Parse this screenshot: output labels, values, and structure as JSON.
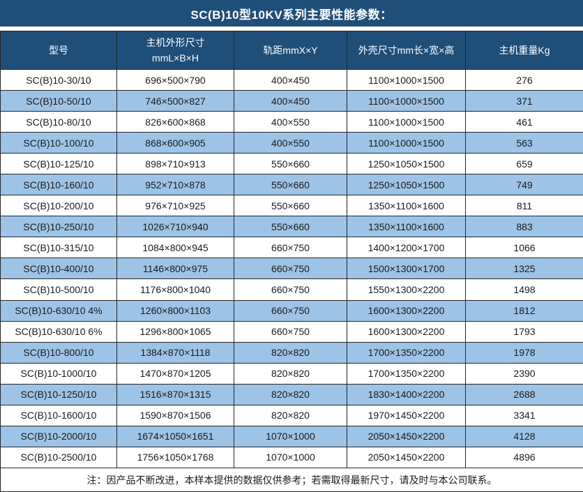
{
  "title": "SC(B)10型10KV系列主要性能参数：",
  "colors": {
    "header_navy": "#1f4e79",
    "row_alt_blue": "#9dc3e6",
    "border_dark": "#262626",
    "row_white": "#ffffff",
    "header_text": "#ffffff",
    "body_text": "#1a1a1a"
  },
  "table": {
    "header": {
      "col1": "型号",
      "col2_line1": "主机外形尺寸",
      "col2_line2": "mmL×B×H",
      "col3": "轨距mmX×Y",
      "col4": "外壳尺寸mm长×宽×高",
      "col5": "主机重量Kg"
    },
    "rows": [
      [
        "SC(B)10-30/10",
        "696×500×790",
        "400×450",
        "1100×1000×1500",
        "276"
      ],
      [
        "SC(B)10-50/10",
        "746×500×827",
        "400×450",
        "1100×1000×1500",
        "371"
      ],
      [
        "SC(B)10-80/10",
        "826×600×868",
        "400×550",
        "1100×1000×1500",
        "461"
      ],
      [
        "SC(B)10-100/10",
        "868×600×905",
        "400×550",
        "1100×1000×1500",
        "563"
      ],
      [
        "SC(B)10-125/10",
        "898×710×913",
        "550×660",
        "1250×1050×1500",
        "659"
      ],
      [
        "SC(B)10-160/10",
        "952×710×878",
        "550×660",
        "1250×1050×1500",
        "749"
      ],
      [
        "SC(B)10-200/10",
        "976×710×925",
        "550×660",
        "1350×1100×1600",
        "811"
      ],
      [
        "SC(B)10-250/10",
        "1026×710×940",
        "550×660",
        "1350×1100×1600",
        "883"
      ],
      [
        "SC(B)10-315/10",
        "1084×800×945",
        "660×750",
        "1400×1200×1700",
        "1066"
      ],
      [
        "SC(B)10-400/10",
        "1146×800×975",
        "660×750",
        "1500×1300×1700",
        "1325"
      ],
      [
        "SC(B)10-500/10",
        "1176×800×1040",
        "660×750",
        "1550×1300×2200",
        "1498"
      ],
      [
        "SC(B)10-630/10 4%",
        "1260×800×1103",
        "660×750",
        "1600×1300×2200",
        "1812"
      ],
      [
        "SC(B)10-630/10 6%",
        "1296×800×1065",
        "660×750",
        "1600×1300×2200",
        "1793"
      ],
      [
        "SC(B)10-800/10",
        "1384×870×1118",
        "820×820",
        "1700×1350×2200",
        "1978"
      ],
      [
        "SC(B)10-1000/10",
        "1470×870×1205",
        "820×820",
        "1700×1350×2200",
        "2390"
      ],
      [
        "SC(B)10-1250/10",
        "1516×870×1315",
        "820×820",
        "1830×1400×2200",
        "2688"
      ],
      [
        "SC(B)10-1600/10",
        "1590×870×1506",
        "820×820",
        "1970×1450×2200",
        "3341"
      ],
      [
        "SC(B)10-2000/10",
        "1674×1050×1651",
        "1070×1000",
        "2050×1450×2200",
        "4128"
      ],
      [
        "SC(B)10-2500/10",
        "1756×1050×1768",
        "1070×1000",
        "2050×1450×2200",
        "4896"
      ]
    ]
  },
  "note": "注：因产品不断改进，本样本提供的数据仅供参考；若需取得最新尺寸，请及时与本公司联系。"
}
